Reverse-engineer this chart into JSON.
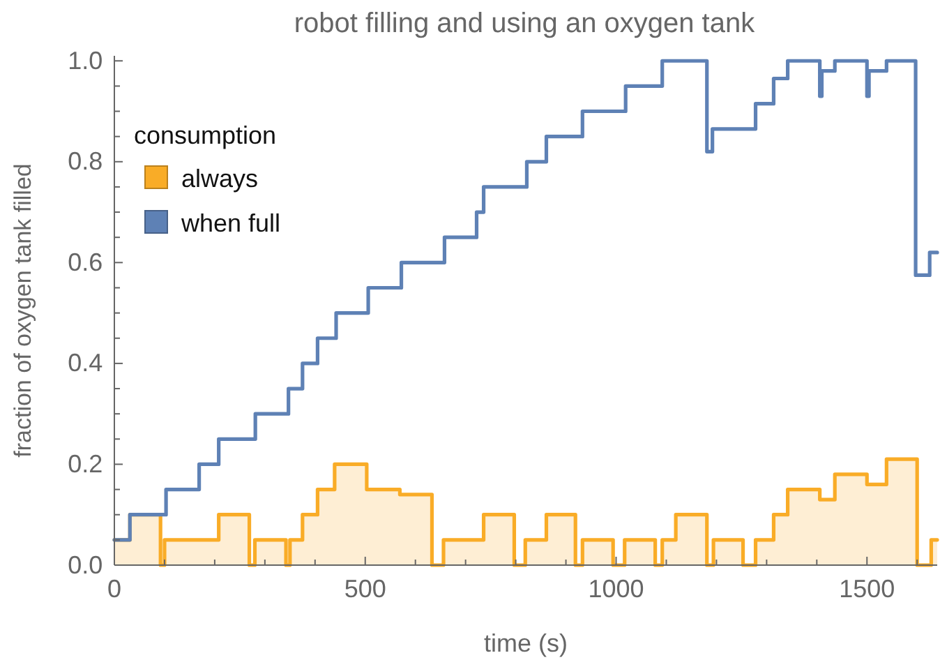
{
  "chart_data": {
    "type": "step",
    "title": "robot filling and using an oxygen tank",
    "xlabel": "time (s)",
    "ylabel": "fraction of oxygen tank filled",
    "legend_title": "consumption",
    "legend": "top left",
    "xlim": [
      0,
      1640
    ],
    "ylim": [
      0,
      1.01
    ],
    "xticks": [
      0,
      {
        "value": 100,
        "label": null
      },
      {
        "value": 200,
        "label": null
      },
      {
        "value": 300,
        "label": null
      },
      {
        "value": 400,
        "label": null
      },
      500,
      {
        "value": 600,
        "label": null
      },
      {
        "value": 700,
        "label": null
      },
      {
        "value": 800,
        "label": null
      },
      {
        "value": 900,
        "label": null
      },
      1000,
      {
        "value": 1100,
        "label": null
      },
      {
        "value": 1200,
        "label": null
      },
      {
        "value": 1300,
        "label": null
      },
      {
        "value": 1400,
        "label": null
      },
      1500,
      {
        "value": 1600,
        "label": null
      }
    ],
    "yticks": [
      {
        "value": 0,
        "label": "0.0"
      },
      {
        "value": 0.05,
        "label": null
      },
      {
        "value": 0.1,
        "label": null
      },
      {
        "value": 0.15,
        "label": null
      },
      {
        "value": 0.2,
        "label": "0.2"
      },
      {
        "value": 0.25,
        "label": null
      },
      {
        "value": 0.3,
        "label": null
      },
      {
        "value": 0.35,
        "label": null
      },
      {
        "value": 0.4,
        "label": "0.4"
      },
      {
        "value": 0.45,
        "label": null
      },
      {
        "value": 0.5,
        "label": null
      },
      {
        "value": 0.55,
        "label": null
      },
      {
        "value": 0.6,
        "label": "0.6"
      },
      {
        "value": 0.65,
        "label": null
      },
      {
        "value": 0.7,
        "label": null
      },
      {
        "value": 0.75,
        "label": null
      },
      {
        "value": 0.8,
        "label": "0.8"
      },
      {
        "value": 0.85,
        "label": null
      },
      {
        "value": 0.9,
        "label": null
      },
      {
        "value": 0.95,
        "label": null
      },
      {
        "value": 1,
        "label": "1.0"
      }
    ],
    "series": [
      {
        "name": "always",
        "type": "area",
        "color": "#f9ac27",
        "x": [
          0,
          31,
          92,
          100,
          208,
          269,
          280,
          342,
          350,
          375,
          405,
          439,
          503,
          569,
          633,
          656,
          736,
          797,
          819,
          861,
          919,
          933,
          994,
          1017,
          1078,
          1092,
          1119,
          1181,
          1194,
          1253,
          1278,
          1314,
          1342,
          1406,
          1436,
          1500,
          1539,
          1600,
          1628,
          1640
        ],
        "values": [
          0.05,
          0.1,
          0,
          0.05,
          0.1,
          0,
          0.05,
          0,
          0.05,
          0.1,
          0.15,
          0.2,
          0.15,
          0.14,
          0,
          0.05,
          0.1,
          0,
          0.05,
          0.1,
          0,
          0.05,
          0,
          0.05,
          0,
          0.05,
          0.1,
          0,
          0.05,
          0,
          0.05,
          0.1,
          0.15,
          0.13,
          0.18,
          0.16,
          0.21,
          0,
          0.05,
          0.05
        ]
      },
      {
        "name": "when full",
        "type": "step",
        "color": "#5e81b5",
        "x": [
          0,
          31,
          103,
          169,
          208,
          281,
          347,
          375,
          405,
          442,
          506,
          572,
          658,
          722,
          736,
          822,
          861,
          933,
          1019,
          1092,
          1181,
          1192,
          1278,
          1314,
          1342,
          1406,
          1410,
          1436,
          1500,
          1504,
          1539,
          1597,
          1625,
          1640
        ],
        "values": [
          0.05,
          0.1,
          0.15,
          0.2,
          0.25,
          0.3,
          0.35,
          0.4,
          0.45,
          0.5,
          0.55,
          0.6,
          0.65,
          0.7,
          0.75,
          0.8,
          0.85,
          0.9,
          0.95,
          1,
          0.82,
          0.865,
          0.915,
          0.965,
          1,
          0.93,
          0.98,
          1,
          0.93,
          0.98,
          1,
          0.575,
          0.62,
          0.62
        ]
      }
    ]
  }
}
